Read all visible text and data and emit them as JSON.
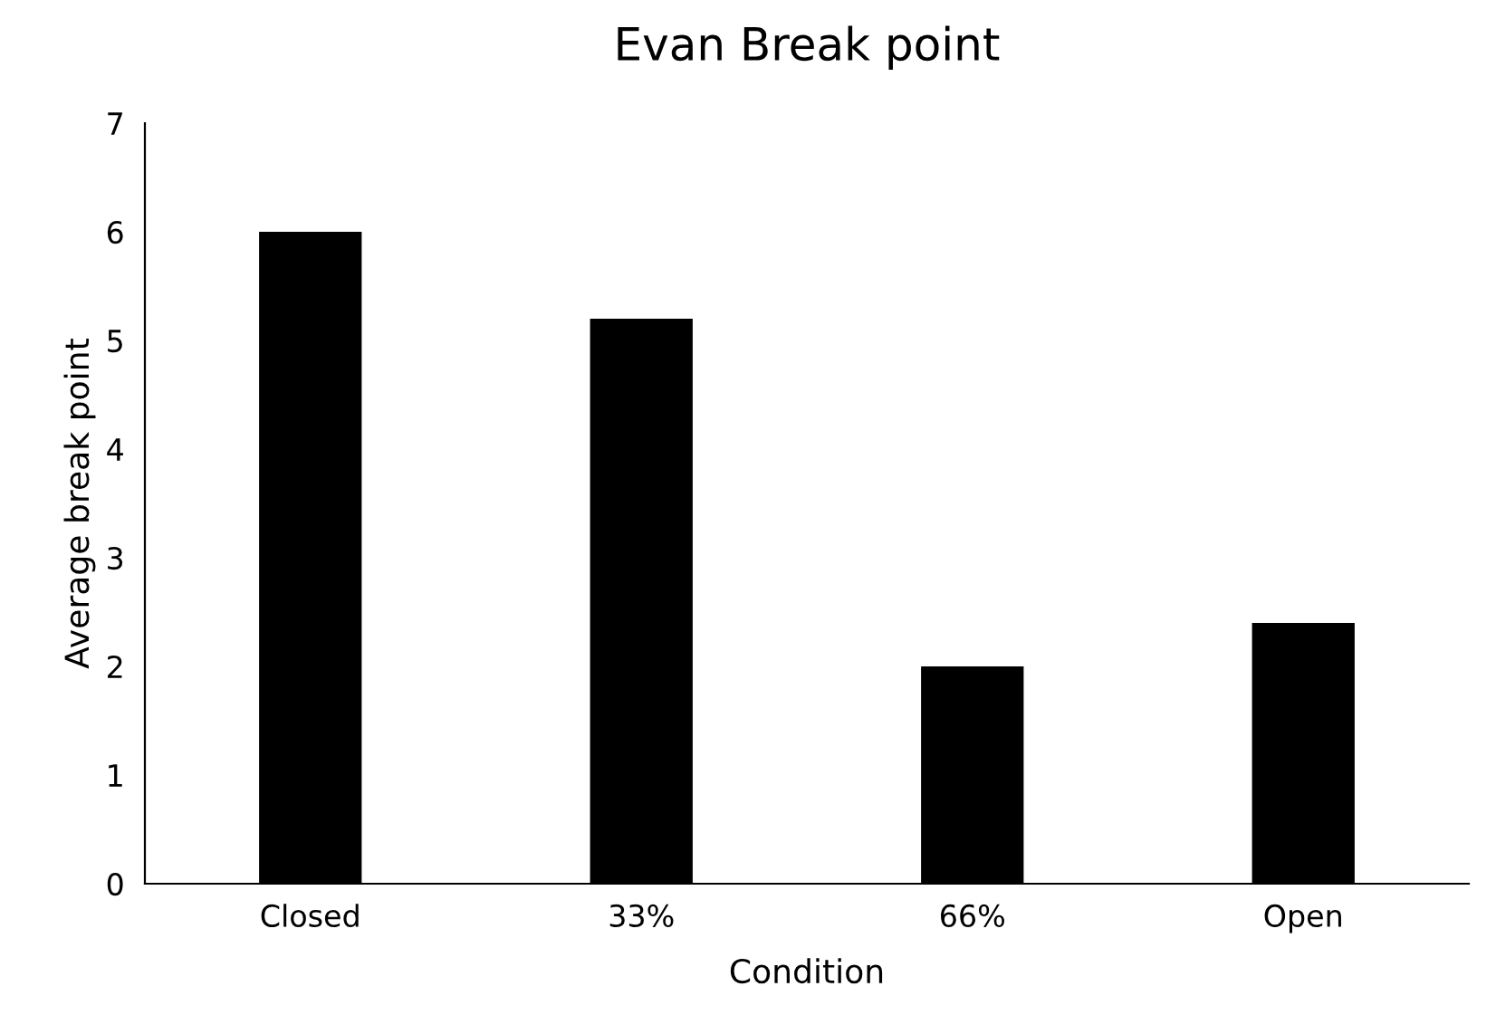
{
  "chart_data": {
    "type": "bar",
    "title": "Evan Break point",
    "xlabel": "Condition",
    "ylabel": "Average break point",
    "categories": [
      "Closed",
      "33%",
      "66%",
      "Open"
    ],
    "values": [
      6,
      5.2,
      2,
      2.4
    ],
    "color": "#000000",
    "ylim": [
      0,
      7
    ],
    "yticks": [
      0,
      1,
      2,
      3,
      4,
      5,
      6,
      7
    ],
    "grid": false,
    "legend": false
  }
}
